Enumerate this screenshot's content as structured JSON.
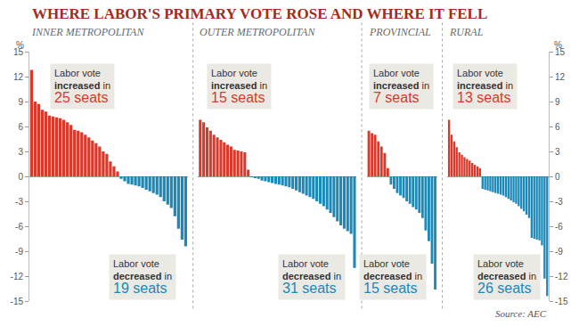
{
  "title": "WHERE LABOR'S PRIMARY VOTE ROSE AND WHERE IT FELL",
  "source": "Source: AEC",
  "chart_data": [
    {
      "type": "bar",
      "title": "INNER METROPOLITAN",
      "ylabel": "%",
      "categories": [
        null,
        null,
        null,
        null,
        null,
        null,
        null,
        null,
        null,
        null,
        null,
        null,
        null,
        null,
        null,
        null,
        null,
        null,
        null,
        null,
        null,
        null,
        null,
        null,
        null,
        null,
        null,
        null,
        null,
        null,
        null,
        null,
        null,
        null,
        null,
        null,
        null,
        null,
        null,
        null,
        null,
        null,
        null,
        null
      ],
      "values": [
        12.8,
        9.0,
        8.7,
        8.0,
        7.8,
        7.3,
        7.2,
        7.1,
        7.0,
        6.8,
        6.5,
        6.2,
        5.6,
        5.5,
        5.3,
        5.0,
        4.7,
        4.3,
        4.0,
        3.6,
        3.0,
        2.7,
        1.8,
        1.2,
        0.6,
        -0.3,
        -0.6,
        -0.9,
        -1.0,
        -1.1,
        -1.2,
        -1.4,
        -1.6,
        -1.8,
        -2.0,
        -2.2,
        -2.5,
        -3.0,
        -3.4,
        -3.8,
        -4.8,
        -6.3,
        -7.6,
        -8.4
      ],
      "colors": [
        "#d8392b",
        "#d8392b",
        "#d8392b",
        "#d8392b",
        "#d8392b",
        "#d8392b",
        "#d8392b",
        "#d8392b",
        "#d8392b",
        "#d8392b",
        "#d8392b",
        "#d8392b",
        "#d8392b",
        "#d8392b",
        "#d8392b",
        "#d8392b",
        "#d8392b",
        "#d8392b",
        "#d8392b",
        "#d8392b",
        "#d8392b",
        "#d8392b",
        "#d8392b",
        "#d8392b",
        "#d8392b",
        "#1a88b8",
        "#1a88b8",
        "#1a88b8",
        "#1a88b8",
        "#1a88b8",
        "#1a88b8",
        "#1a88b8",
        "#1a88b8",
        "#1a88b8",
        "#1a88b8",
        "#1a88b8",
        "#1a88b8",
        "#1a88b8",
        "#1a88b8",
        "#1a88b8",
        "#1a88b8",
        "#1a88b8",
        "#1a88b8",
        "#1a88b8"
      ],
      "ylim": [
        -15,
        15
      ],
      "yticks": [
        -15,
        -12,
        -9,
        -6,
        -3,
        0,
        3,
        6,
        9,
        12,
        15
      ],
      "grid": false,
      "tick_labels": "y",
      "annotations": [
        {
          "lines": [
            "Labor vote",
            "increased in",
            "25 seats"
          ],
          "emphasis": "increased",
          "color": "#d8392b"
        },
        {
          "lines": [
            "Labor vote",
            "decreased in",
            "19 seats"
          ],
          "emphasis": "decreased",
          "color": "#1a88b8"
        }
      ]
    },
    {
      "type": "bar",
      "title": "OUTER METROPOLITAN",
      "categories": [
        null,
        null,
        null,
        null,
        null,
        null,
        null,
        null,
        null,
        null,
        null,
        null,
        null,
        null,
        null,
        null,
        null,
        null,
        null,
        null,
        null,
        null,
        null,
        null,
        null,
        null,
        null,
        null,
        null,
        null,
        null,
        null,
        null,
        null,
        null,
        null,
        null,
        null,
        null,
        null,
        null,
        null,
        null,
        null,
        null,
        null
      ],
      "values": [
        6.8,
        6.5,
        5.9,
        5.5,
        5.0,
        4.7,
        4.4,
        4.1,
        3.8,
        3.6,
        3.2,
        3.1,
        3.0,
        2.9,
        0.8,
        -0.1,
        -0.2,
        -0.3,
        -0.5,
        -0.6,
        -0.7,
        -0.8,
        -0.9,
        -1.0,
        -1.1,
        -1.2,
        -1.3,
        -1.5,
        -1.7,
        -1.9,
        -2.1,
        -2.3,
        -2.5,
        -2.7,
        -3.0,
        -3.3,
        -3.6,
        -4.0,
        -4.4,
        -4.9,
        -5.4,
        -5.9,
        -6.3,
        -6.6,
        -6.9,
        -11.0
      ],
      "colors": [
        "#d8392b",
        "#d8392b",
        "#d8392b",
        "#d8392b",
        "#d8392b",
        "#d8392b",
        "#d8392b",
        "#d8392b",
        "#d8392b",
        "#d8392b",
        "#d8392b",
        "#d8392b",
        "#d8392b",
        "#d8392b",
        "#d8392b",
        "#1a88b8",
        "#1a88b8",
        "#1a88b8",
        "#1a88b8",
        "#1a88b8",
        "#1a88b8",
        "#1a88b8",
        "#1a88b8",
        "#1a88b8",
        "#1a88b8",
        "#1a88b8",
        "#1a88b8",
        "#1a88b8",
        "#1a88b8",
        "#1a88b8",
        "#1a88b8",
        "#1a88b8",
        "#1a88b8",
        "#1a88b8",
        "#1a88b8",
        "#1a88b8",
        "#1a88b8",
        "#1a88b8",
        "#1a88b8",
        "#1a88b8",
        "#1a88b8",
        "#1a88b8",
        "#1a88b8",
        "#1a88b8",
        "#1a88b8",
        "#1a88b8"
      ],
      "ylim": [
        -15,
        15
      ],
      "yticks": [
        -15,
        -12,
        -9,
        -6,
        -3,
        0,
        3,
        6,
        9,
        12,
        15
      ],
      "grid": false,
      "tick_labels": false,
      "annotations": [
        {
          "lines": [
            "Labor vote",
            "increased in",
            "15 seats"
          ],
          "emphasis": "increased",
          "color": "#d8392b"
        },
        {
          "lines": [
            "Labor vote",
            "decreased in",
            "31 seats"
          ],
          "emphasis": "decreased",
          "color": "#1a88b8"
        }
      ]
    },
    {
      "type": "bar",
      "title": "PROVINCIAL",
      "categories": [
        null,
        null,
        null,
        null,
        null,
        null,
        null,
        null,
        null,
        null,
        null,
        null,
        null,
        null,
        null,
        null,
        null,
        null,
        null,
        null,
        null,
        null
      ],
      "values": [
        5.5,
        5.2,
        5.0,
        4.2,
        3.6,
        2.8,
        1.0,
        -1.0,
        -1.5,
        -2.0,
        -2.3,
        -2.6,
        -3.0,
        -3.3,
        -3.7,
        -4.0,
        -4.4,
        -5.0,
        -6.5,
        -7.8,
        -10.5,
        -13.6
      ],
      "colors": [
        "#d8392b",
        "#d8392b",
        "#d8392b",
        "#d8392b",
        "#d8392b",
        "#d8392b",
        "#d8392b",
        "#1a88b8",
        "#1a88b8",
        "#1a88b8",
        "#1a88b8",
        "#1a88b8",
        "#1a88b8",
        "#1a88b8",
        "#1a88b8",
        "#1a88b8",
        "#1a88b8",
        "#1a88b8",
        "#1a88b8",
        "#1a88b8",
        "#1a88b8",
        "#1a88b8"
      ],
      "ylim": [
        -15,
        15
      ],
      "yticks": [
        -15,
        -12,
        -9,
        -6,
        -3,
        0,
        3,
        6,
        9,
        12,
        15
      ],
      "grid": false,
      "tick_labels": false,
      "annotations": [
        {
          "lines": [
            "Labor vote",
            "increased in",
            "7 seats"
          ],
          "emphasis": "increased",
          "color": "#d8392b"
        },
        {
          "lines": [
            "Labor vote",
            "decreased in",
            "15 seats"
          ],
          "emphasis": "decreased",
          "color": "#1a88b8"
        }
      ]
    },
    {
      "type": "bar",
      "title": "RURAL",
      "ylabel": "%",
      "categories": [
        null,
        null,
        null,
        null,
        null,
        null,
        null,
        null,
        null,
        null,
        null,
        null,
        null,
        null,
        null,
        null,
        null,
        null,
        null,
        null,
        null,
        null,
        null,
        null,
        null,
        null,
        null,
        null,
        null,
        null,
        null,
        null,
        null,
        null,
        null,
        null,
        null,
        null,
        null
      ],
      "values": [
        6.8,
        5.0,
        4.2,
        3.5,
        2.9,
        2.6,
        2.3,
        2.1,
        1.9,
        1.6,
        1.4,
        1.2,
        1.0,
        -1.5,
        -1.6,
        -1.7,
        -1.8,
        -1.9,
        -2.0,
        -2.1,
        -2.2,
        -2.3,
        -2.5,
        -2.7,
        -2.9,
        -3.1,
        -3.3,
        -3.6,
        -3.9,
        -4.2,
        -4.6,
        -5.0,
        -7.4,
        -7.5,
        -7.6,
        -7.7,
        -8.3,
        -12.3,
        -14.4
      ],
      "colors": [
        "#d8392b",
        "#d8392b",
        "#d8392b",
        "#d8392b",
        "#d8392b",
        "#d8392b",
        "#d8392b",
        "#d8392b",
        "#d8392b",
        "#d8392b",
        "#d8392b",
        "#d8392b",
        "#d8392b",
        "#1a88b8",
        "#1a88b8",
        "#1a88b8",
        "#1a88b8",
        "#1a88b8",
        "#1a88b8",
        "#1a88b8",
        "#1a88b8",
        "#1a88b8",
        "#1a88b8",
        "#1a88b8",
        "#1a88b8",
        "#1a88b8",
        "#1a88b8",
        "#1a88b8",
        "#1a88b8",
        "#1a88b8",
        "#1a88b8",
        "#1a88b8",
        "#1a88b8",
        "#1a88b8",
        "#1a88b8",
        "#1a88b8",
        "#1a88b8",
        "#1a88b8",
        "#1a88b8"
      ],
      "ylim": [
        -15,
        15
      ],
      "yticks": [
        -15,
        -12,
        -9,
        -6,
        -3,
        0,
        3,
        6,
        9,
        12,
        15
      ],
      "grid": false,
      "tick_labels": "y",
      "annotations": [
        {
          "lines": [
            "Labor vote",
            "increased in",
            "13 seats"
          ],
          "emphasis": "increased",
          "color": "#d8392b"
        },
        {
          "lines": [
            "Labor vote",
            "decreased in",
            "26 seats"
          ],
          "emphasis": "decreased",
          "color": "#1a88b8"
        }
      ]
    }
  ]
}
